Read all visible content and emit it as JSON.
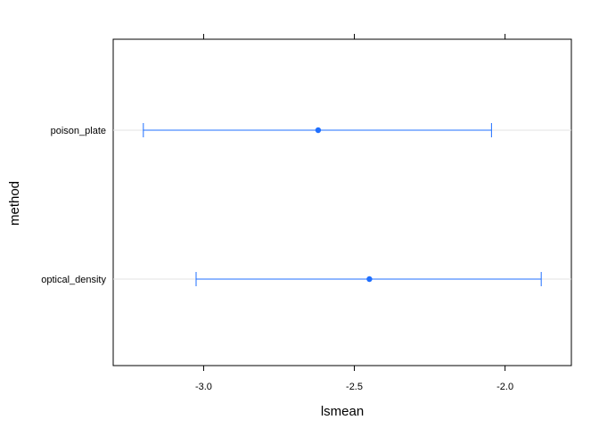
{
  "chart_data": {
    "type": "dotplot-interval",
    "xlabel": "lsmean",
    "ylabel": "method",
    "xlim": [
      -3.3,
      -1.78
    ],
    "xticks": [
      -3.0,
      -2.5,
      -2.0
    ],
    "xtick_labels": [
      "-3.0",
      "-2.5",
      "-2.0"
    ],
    "categories": [
      "poison_plate",
      "optical_density"
    ],
    "estimates": [
      -2.62,
      -2.45
    ],
    "lower": [
      -3.2,
      -3.025
    ],
    "upper": [
      -2.045,
      -1.88
    ],
    "grid": "horizontal lines at categories",
    "color": "#1f6fff"
  }
}
